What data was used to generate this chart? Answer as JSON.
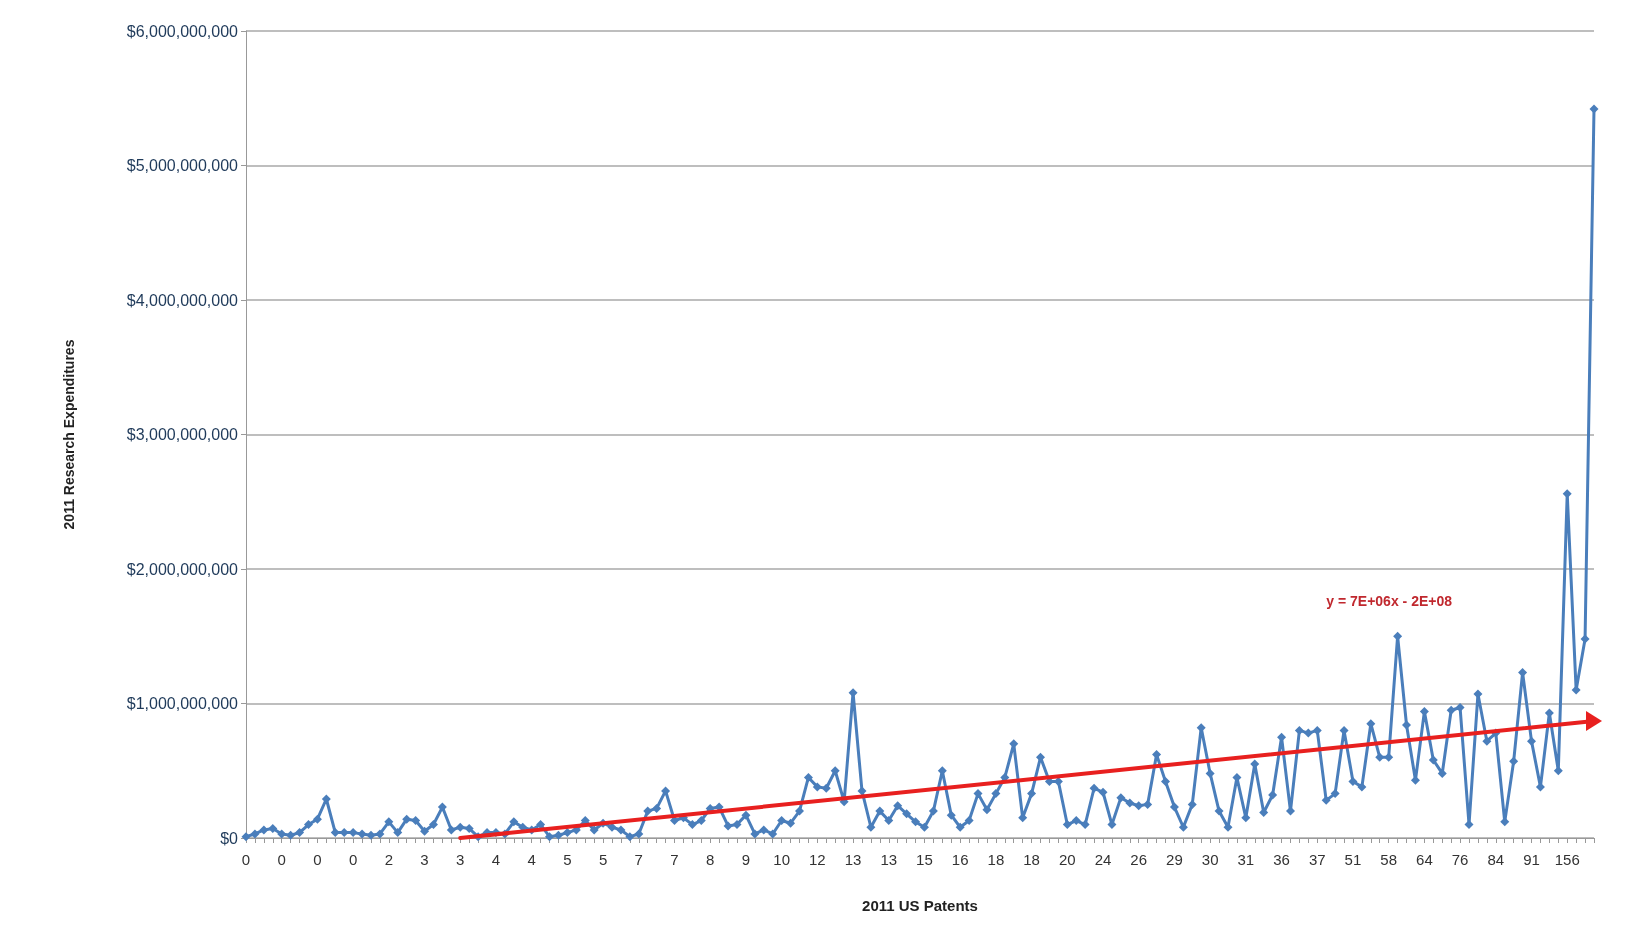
{
  "chart_data": {
    "type": "line",
    "xlabel": "2011 US Patents",
    "ylabel": "2011 Research Expenditures",
    "categories": [
      "0",
      null,
      null,
      null,
      "0",
      null,
      null,
      null,
      "0",
      null,
      null,
      null,
      "0",
      null,
      null,
      null,
      "2",
      null,
      null,
      null,
      "3",
      null,
      null,
      null,
      "3",
      null,
      null,
      null,
      "4",
      null,
      null,
      null,
      "4",
      null,
      null,
      null,
      "5",
      null,
      null,
      null,
      "5",
      null,
      null,
      null,
      "7",
      null,
      null,
      null,
      "7",
      null,
      null,
      null,
      "8",
      null,
      null,
      null,
      "9",
      null,
      null,
      null,
      "10",
      null,
      null,
      null,
      "12",
      null,
      null,
      null,
      "13",
      null,
      null,
      null,
      "13",
      null,
      null,
      null,
      "15",
      null,
      null,
      null,
      "16",
      null,
      null,
      null,
      "18",
      null,
      null,
      null,
      "18",
      null,
      null,
      null,
      "20",
      null,
      null,
      null,
      "24",
      null,
      null,
      null,
      "26",
      null,
      null,
      null,
      "29",
      null,
      null,
      null,
      "30",
      null,
      null,
      null,
      "31",
      null,
      null,
      null,
      "36",
      null,
      null,
      null,
      "37",
      null,
      null,
      null,
      "51",
      null,
      null,
      null,
      "58",
      null,
      null,
      null,
      "64",
      null,
      null,
      null,
      "76",
      null,
      null,
      null,
      "84",
      null,
      null,
      null,
      "91",
      null,
      null,
      null,
      "156",
      null,
      null,
      null
    ],
    "series": [
      {
        "color": "#4a7ebb",
        "marker": "diamond",
        "values": [
          10000000.0,
          30000000.0,
          60000000.0,
          70000000.0,
          30000000.0,
          20000000.0,
          40000000.0,
          100000000.0,
          140000000.0,
          290000000.0,
          40000000.0,
          40000000.0,
          40000000.0,
          30000000.0,
          20000000.0,
          30000000.0,
          120000000.0,
          40000000.0,
          140000000.0,
          130000000.0,
          50000000.0,
          100000000.0,
          230000000.0,
          60000000.0,
          80000000.0,
          70000000.0,
          10000000.0,
          40000000.0,
          40000000.0,
          30000000.0,
          120000000.0,
          80000000.0,
          60000000.0,
          100000000.0,
          10000000.0,
          20000000.0,
          40000000.0,
          60000000.0,
          130000000.0,
          60000000.0,
          110000000.0,
          80000000.0,
          60000000.0,
          10000000.0,
          30000000.0,
          200000000.0,
          220000000.0,
          350000000.0,
          130000000.0,
          150000000.0,
          100000000.0,
          130000000.0,
          220000000.0,
          230000000.0,
          90000000.0,
          100000000.0,
          170000000.0,
          30000000.0,
          60000000.0,
          30000000.0,
          130000000.0,
          110000000.0,
          200000000.0,
          450000000.0,
          380000000.0,
          370000000.0,
          500000000.0,
          270000000.0,
          1080000000.0,
          350000000.0,
          80000000.0,
          200000000.0,
          130000000.0,
          240000000.0,
          180000000.0,
          120000000.0,
          80000000.0,
          200000000.0,
          500000000.0,
          170000000.0,
          80000000.0,
          130000000.0,
          330000000.0,
          210000000.0,
          330000000.0,
          450000000.0,
          700000000.0,
          150000000.0,
          330000000.0,
          600000000.0,
          420000000.0,
          420000000.0,
          100000000.0,
          130000000.0,
          100000000.0,
          370000000.0,
          340000000.0,
          100000000.0,
          300000000.0,
          260000000.0,
          240000000.0,
          250000000.0,
          620000000.0,
          420000000.0,
          230000000.0,
          80000000.0,
          250000000.0,
          820000000.0,
          480000000.0,
          200000000.0,
          80000000.0,
          450000000.0,
          150000000.0,
          550000000.0,
          190000000.0,
          320000000.0,
          750000000.0,
          200000000.0,
          800000000.0,
          780000000.0,
          800000000.0,
          280000000.0,
          330000000.0,
          800000000.0,
          420000000.0,
          380000000.0,
          850000000.0,
          600000000.0,
          600000000.0,
          1500000000.0,
          840000000.0,
          430000000.0,
          940000000.0,
          580000000.0,
          480000000.0,
          950000000.0,
          970000000.0,
          100000000.0,
          1070000000.0,
          720000000.0,
          780000000.0,
          120000000.0,
          570000000.0,
          1230000000.0,
          720000000.0,
          380000000.0,
          930000000.0,
          500000000.0,
          2560000000.0,
          1100000000.0,
          1480000000.0,
          5420000000.0
        ]
      },
      {
        "color": "#e8201f",
        "marker": "triangle",
        "values": [
          null,
          null,
          null,
          null,
          null,
          null,
          null,
          null,
          null,
          null,
          null,
          null,
          null,
          null,
          null,
          null,
          null,
          null,
          null,
          null,
          null,
          null,
          null,
          null,
          0,
          null,
          null,
          null,
          null,
          null,
          null,
          null,
          null,
          null,
          null,
          null,
          null,
          null,
          null,
          null,
          null,
          null,
          null,
          null,
          null,
          null,
          null,
          null,
          null,
          null,
          null,
          null,
          null,
          null,
          null,
          null,
          null,
          null,
          null,
          null,
          null,
          null,
          null,
          null,
          null,
          null,
          null,
          null,
          null,
          null,
          null,
          null,
          null,
          null,
          null,
          null,
          null,
          null,
          null,
          null,
          null,
          null,
          null,
          null,
          null,
          null,
          null,
          null,
          null,
          null,
          null,
          null,
          null,
          null,
          null,
          null,
          null,
          null,
          null,
          null,
          null,
          null,
          null,
          null,
          null,
          null,
          null,
          null,
          null,
          null,
          null,
          null,
          null,
          null,
          null,
          null,
          null,
          null,
          null,
          null,
          null,
          null,
          null,
          null,
          null,
          null,
          null,
          null,
          null,
          null,
          null,
          null,
          null,
          null,
          null,
          null,
          null,
          null,
          null,
          null,
          null,
          null,
          null,
          null,
          null,
          null,
          null,
          null,
          null,
          null,
          null,
          870000000.0
        ]
      }
    ],
    "ylim": [
      0,
      6000000000.0
    ],
    "yticks": [
      {
        "value": 0,
        "label": "$0"
      },
      {
        "value": 1000000000.0,
        "label": "$1,000,000,000"
      },
      {
        "value": 2000000000.0,
        "label": "$2,000,000,000"
      },
      {
        "value": 3000000000.0,
        "label": "$3,000,000,000"
      },
      {
        "value": 4000000000.0,
        "label": "$4,000,000,000"
      },
      {
        "value": 5000000000.0,
        "label": "$5,000,000,000"
      },
      {
        "value": 6000000000.0,
        "label": "$6,000,000,000"
      }
    ],
    "annotations": [
      "y = 7E+06x - 2E+08"
    ],
    "grid": "y",
    "line_style": "solid"
  }
}
